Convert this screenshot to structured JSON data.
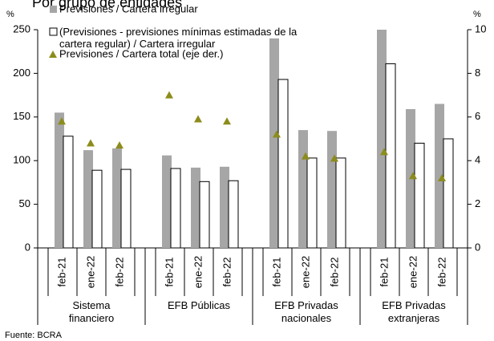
{
  "chart_data": {
    "type": "bar",
    "title": "Por grupo de entidades",
    "y_unit": "%",
    "y2_unit": "%",
    "groups": [
      "Sistema financiero",
      "EFB Públicas",
      "EFB Privadas nacionales",
      "EFB Privadas extranjeras"
    ],
    "categories": [
      "feb-21",
      "ene-22",
      "feb-22",
      "feb-21",
      "ene-22",
      "feb-22",
      "feb-21",
      "ene-22",
      "feb-22",
      "feb-21",
      "ene-22",
      "feb-22"
    ],
    "series": [
      {
        "name": "Previsiones / Cartera irregular",
        "color": "#a6a6a6",
        "values": [
          155,
          112,
          114,
          106,
          92,
          93,
          240,
          135,
          134,
          250,
          159,
          165
        ]
      },
      {
        "name": "(Previsiones - previsiones mínimas estimadas de la cartera regular) / Cartera irregular",
        "color": "#ffffff",
        "values": [
          128,
          89,
          90,
          91,
          76,
          77,
          193,
          103,
          103,
          211,
          120,
          125
        ]
      },
      {
        "name": "Previsiones / Cartera total (eje der.)",
        "color": "#8c8c1c",
        "axis": "y2",
        "values": [
          5.8,
          4.8,
          4.7,
          7.0,
          5.9,
          5.8,
          5.2,
          4.2,
          4.1,
          4.4,
          3.3,
          3.2
        ]
      }
    ],
    "ylim": [
      0,
      250
    ],
    "yticks": [
      0,
      50,
      100,
      150,
      200,
      250
    ],
    "y2lim": [
      0,
      10
    ],
    "y2ticks": [
      0,
      2,
      4,
      6,
      8,
      10
    ],
    "source": "Fuente: BCRA"
  }
}
